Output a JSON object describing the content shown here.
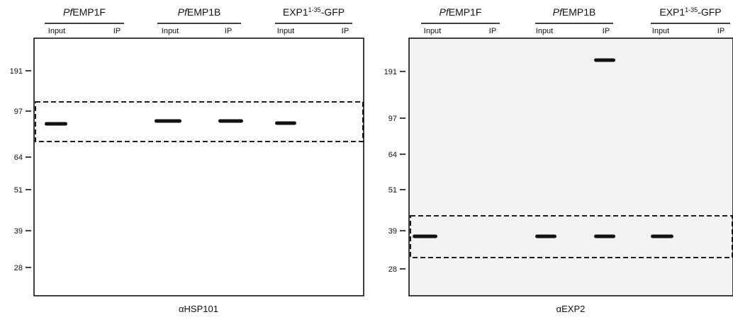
{
  "panels": [
    {
      "groups": [
        {
          "prefix": "Pf",
          "name": "EMP1F",
          "lanes": [
            "Input",
            "IP"
          ]
        },
        {
          "prefix": "Pf",
          "name": "EMP1B",
          "lanes": [
            "Input",
            "IP"
          ]
        },
        {
          "name": "EXP1",
          "sup": "1-35",
          "suffix": "-GFP",
          "lanes": [
            "Input",
            "IP"
          ]
        }
      ],
      "markers": [
        "191",
        "97",
        "64",
        "51",
        "39",
        "28"
      ],
      "antibody": "αHSP101"
    },
    {
      "groups": [
        {
          "prefix": "Pf",
          "name": "EMP1F",
          "lanes": [
            "Input",
            "IP"
          ]
        },
        {
          "prefix": "Pf",
          "name": "EMP1B",
          "lanes": [
            "Input",
            "IP"
          ]
        },
        {
          "name": "EXP1",
          "sup": "1-35",
          "suffix": "-GFP",
          "lanes": [
            "Input",
            "IP"
          ]
        }
      ],
      "markers": [
        "191",
        "97",
        "64",
        "51",
        "39",
        "28"
      ],
      "antibody": "αEXP2"
    }
  ]
}
